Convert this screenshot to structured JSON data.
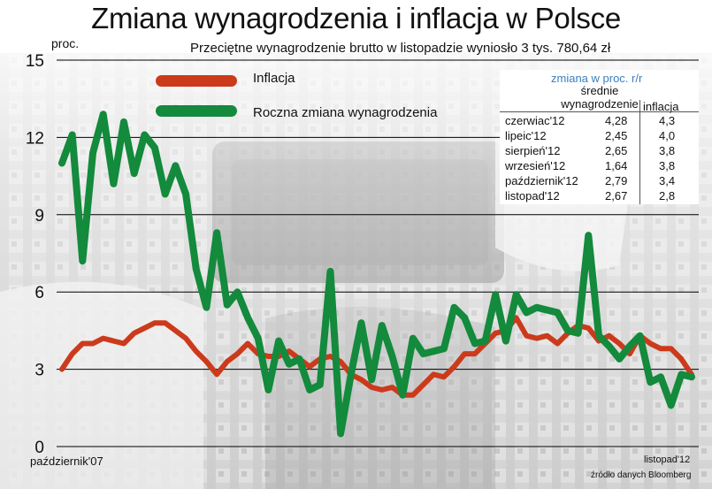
{
  "title": "Zmiana wynagrodzenia i inflacja w Polsce",
  "subtitle": "Przeciętne wynagrodzenie brutto w listopadzie wyniosło 3 tys. 780,64 zł",
  "unit_label": "proc.",
  "x_start_label": "październik'07",
  "x_end_label": "listopad'12",
  "source": "źródło danych Bloomberg",
  "colors": {
    "inflation": "#cc3a1c",
    "wages": "#138a3c",
    "table_header": "#3b7fbf",
    "gridline": "#000000"
  },
  "legend": {
    "inflation_label": "Inflacja",
    "wages_label": "Roczna zmiana wynagrodzenia"
  },
  "table": {
    "header": "zmiana w proc. r/r",
    "col_wages": "średnie wynagrodzenie",
    "col_inflation": "inflacja",
    "rows": [
      {
        "month": "czerwiac'12",
        "wages": "4,28",
        "inflation": "4,3"
      },
      {
        "month": "lipeic'12",
        "wages": "2,45",
        "inflation": "4,0"
      },
      {
        "month": "sierpień'12",
        "wages": "2,65",
        "inflation": "3,8"
      },
      {
        "month": "wrzesień'12",
        "wages": "1,64",
        "inflation": "3,8"
      },
      {
        "month": "październik'12",
        "wages": "2,79",
        "inflation": "3,4"
      },
      {
        "month": "listopad'12",
        "wages": "2,67",
        "inflation": "2,8"
      }
    ]
  },
  "chart_data": {
    "type": "line",
    "title": "Zmiana wynagrodzenia i inflacja w Polsce",
    "ylabel": "proc.",
    "ylim": [
      0,
      15
    ],
    "yticks": [
      0,
      3,
      6,
      9,
      12,
      15
    ],
    "ytick_labels": [
      "0",
      "3",
      "6",
      "9",
      "12",
      "15"
    ],
    "x_range": "październik'07 – listopad'12 (monthly)",
    "grid": true,
    "legend_position": "top-left",
    "series": [
      {
        "name": "Inflacja",
        "values": [
          3.0,
          3.6,
          4.0,
          4.0,
          4.2,
          4.1,
          4.0,
          4.4,
          4.6,
          4.8,
          4.8,
          4.5,
          4.2,
          3.7,
          3.3,
          2.8,
          3.3,
          3.6,
          4.0,
          3.6,
          3.5,
          3.5,
          3.7,
          3.4,
          3.1,
          3.4,
          3.5,
          3.3,
          2.8,
          2.6,
          2.3,
          2.2,
          2.3,
          2.0,
          2.0,
          2.4,
          2.8,
          2.7,
          3.1,
          3.6,
          3.6,
          4.0,
          4.4,
          4.5,
          5.0,
          4.3,
          4.2,
          4.3,
          4.0,
          4.4,
          4.7,
          4.6,
          4.1,
          4.3,
          4.0,
          3.6,
          4.3,
          4.0,
          3.8,
          3.8,
          3.4,
          2.8
        ]
      },
      {
        "name": "Roczna zmiana wynagrodzenia",
        "values": [
          11.0,
          12.1,
          7.2,
          11.4,
          12.9,
          10.2,
          12.6,
          10.6,
          12.1,
          11.6,
          9.8,
          10.9,
          9.8,
          6.9,
          5.4,
          8.3,
          5.5,
          6.0,
          5.0,
          4.2,
          2.2,
          4.1,
          3.2,
          3.4,
          2.2,
          2.4,
          6.8,
          0.5,
          2.8,
          4.8,
          2.6,
          4.7,
          3.5,
          2.0,
          4.2,
          3.6,
          3.7,
          3.8,
          5.4,
          5.0,
          4.0,
          4.1,
          5.9,
          4.1,
          5.9,
          5.2,
          5.4,
          5.3,
          5.2,
          4.5,
          4.4,
          8.2,
          4.3,
          3.9,
          3.4,
          3.9,
          4.3,
          2.5,
          2.7,
          1.6,
          2.8,
          2.7
        ]
      }
    ]
  }
}
